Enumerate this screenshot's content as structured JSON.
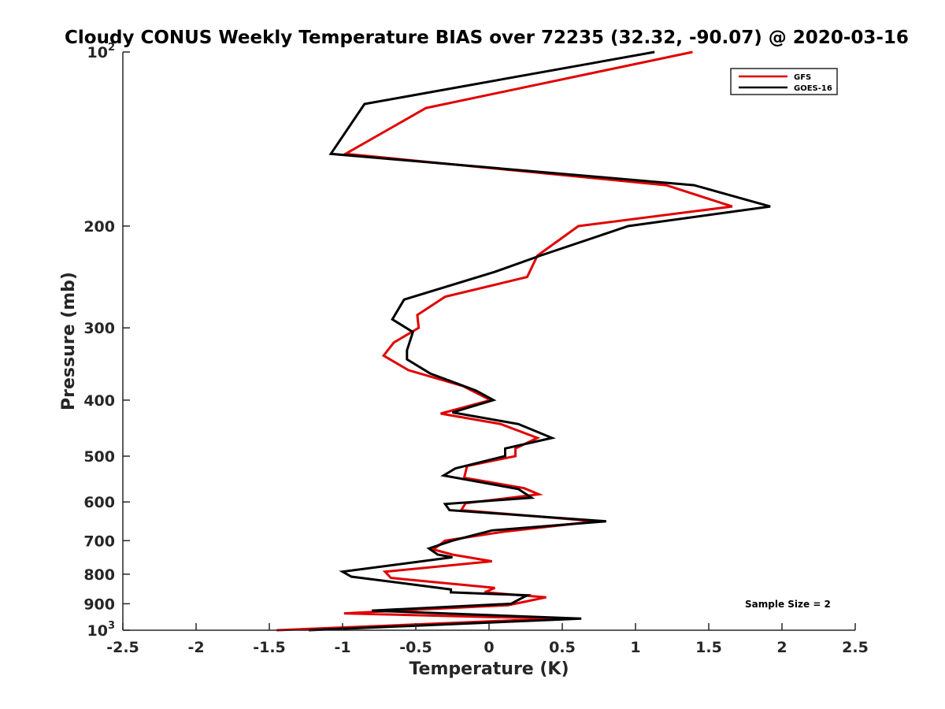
{
  "chart_data": {
    "type": "line",
    "title": "Cloudy CONUS Weekly Temperature BIAS over 72235 (32.32, -90.07) @ 2020-03-16",
    "xlabel": "Temperature (K)",
    "ylabel": "Pressure (mb)",
    "xlim": [
      -2.5,
      2.5
    ],
    "ylim": [
      100,
      1000
    ],
    "y_scale": "log",
    "y_reversed": true,
    "x_ticks": [
      -2.5,
      -2,
      -1.5,
      -1,
      -0.5,
      0,
      0.5,
      1,
      1.5,
      2,
      2.5
    ],
    "x_tick_labels": [
      "-2.5",
      "-2",
      "-1.5",
      "-1",
      "-0.5",
      "0",
      "0.5",
      "1",
      "1.5",
      "2",
      "2.5"
    ],
    "y_ticks": [
      {
        "value": 100,
        "base": "10",
        "exp": "2"
      },
      {
        "value": 200,
        "label": "200"
      },
      {
        "value": 300,
        "label": "300"
      },
      {
        "value": 400,
        "label": "400"
      },
      {
        "value": 500,
        "label": "500"
      },
      {
        "value": 600,
        "label": "600"
      },
      {
        "value": 700,
        "label": "700"
      },
      {
        "value": 800,
        "label": "800"
      },
      {
        "value": 900,
        "label": "900"
      },
      {
        "value": 1000,
        "base": "10",
        "exp": "3"
      }
    ],
    "grid": false,
    "legend_position": "top-right",
    "series": [
      {
        "name": "GFS",
        "color": "#e00000",
        "points": [
          [
            1.39,
            100
          ],
          [
            -0.43,
            125
          ],
          [
            -0.98,
            150
          ],
          [
            1.21,
            170
          ],
          [
            1.66,
            185
          ],
          [
            0.61,
            200
          ],
          [
            0.33,
            225
          ],
          [
            0.26,
            245
          ],
          [
            -0.3,
            265
          ],
          [
            -0.49,
            285
          ],
          [
            -0.48,
            300
          ],
          [
            -0.65,
            318
          ],
          [
            -0.72,
            335
          ],
          [
            -0.55,
            355
          ],
          [
            -0.18,
            378
          ],
          [
            0.01,
            400
          ],
          [
            -0.33,
            422
          ],
          [
            0.08,
            440
          ],
          [
            0.33,
            465
          ],
          [
            0.18,
            485
          ],
          [
            0.18,
            500
          ],
          [
            -0.15,
            520
          ],
          [
            -0.17,
            545
          ],
          [
            0.24,
            568
          ],
          [
            0.34,
            582
          ],
          [
            -0.16,
            603
          ],
          [
            -0.19,
            620
          ],
          [
            0.73,
            648
          ],
          [
            0.11,
            675
          ],
          [
            -0.3,
            700
          ],
          [
            -0.38,
            725
          ],
          [
            -0.25,
            740
          ],
          [
            0.02,
            760
          ],
          [
            -0.71,
            792
          ],
          [
            -0.67,
            812
          ],
          [
            0.04,
            845
          ],
          [
            -0.03,
            860
          ],
          [
            0.39,
            877
          ],
          [
            0.13,
            905
          ],
          [
            -0.99,
            935
          ],
          [
            0.45,
            955
          ],
          [
            -1.45,
            1000
          ]
        ]
      },
      {
        "name": "GOES-16",
        "color": "#000000",
        "points": [
          [
            1.13,
            100
          ],
          [
            -0.85,
            123
          ],
          [
            -1.08,
            150
          ],
          [
            1.4,
            170
          ],
          [
            1.92,
            185
          ],
          [
            0.95,
            200
          ],
          [
            0.35,
            225
          ],
          [
            0.04,
            240
          ],
          [
            -0.58,
            268
          ],
          [
            -0.66,
            290
          ],
          [
            -0.52,
            305
          ],
          [
            -0.56,
            328
          ],
          [
            -0.56,
            340
          ],
          [
            -0.4,
            360
          ],
          [
            -0.09,
            385
          ],
          [
            0.03,
            400
          ],
          [
            -0.25,
            420
          ],
          [
            0.2,
            440
          ],
          [
            0.43,
            465
          ],
          [
            0.11,
            485
          ],
          [
            0.11,
            500
          ],
          [
            -0.23,
            525
          ],
          [
            -0.31,
            540
          ],
          [
            0.2,
            570
          ],
          [
            0.29,
            590
          ],
          [
            -0.3,
            605
          ],
          [
            -0.27,
            620
          ],
          [
            0.8,
            648
          ],
          [
            0.02,
            672
          ],
          [
            -0.25,
            700
          ],
          [
            -0.41,
            722
          ],
          [
            -0.35,
            740
          ],
          [
            -0.25,
            748
          ],
          [
            -1.0,
            792
          ],
          [
            -0.94,
            808
          ],
          [
            -0.26,
            850
          ],
          [
            -0.26,
            860
          ],
          [
            0.26,
            870
          ],
          [
            0.15,
            900
          ],
          [
            -0.8,
            925
          ],
          [
            0.63,
            955
          ],
          [
            -1.23,
            1000
          ]
        ]
      }
    ],
    "annotation": "Sample Size = 2"
  }
}
